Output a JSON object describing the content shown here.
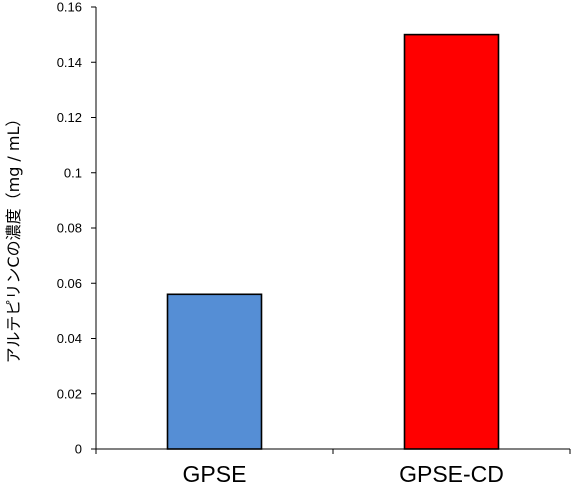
{
  "chart_data": {
    "type": "bar",
    "categories": [
      "GPSE",
      "GPSE-CD"
    ],
    "values": [
      0.056,
      0.15
    ],
    "bar_colors": [
      "#558ed5",
      "#ff0000"
    ],
    "title": "",
    "xlabel": "",
    "ylabel": "アルテピリンCの濃度（mg / mL）",
    "ylim": [
      0,
      0.16
    ],
    "yticks": [
      0,
      0.02,
      0.04,
      0.06,
      0.08,
      0.1,
      0.12,
      0.14,
      0.16
    ],
    "ytick_labels": [
      "0",
      "0.02",
      "0.04",
      "0.06",
      "0.08",
      "0.1",
      "0.12",
      "0.14",
      "0.16"
    ],
    "grid": false,
    "legend": "none"
  }
}
